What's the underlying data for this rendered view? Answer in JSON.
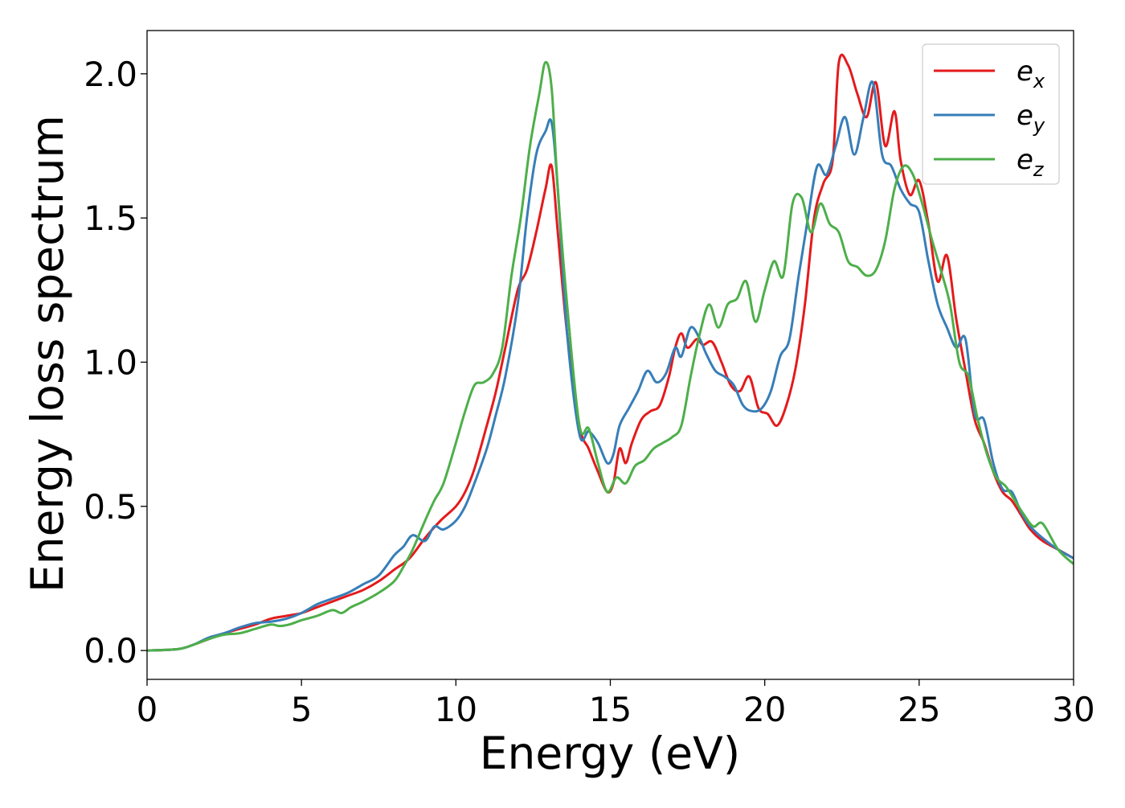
{
  "chart_data": {
    "type": "line",
    "title": "",
    "xlabel": "Energy (eV)",
    "ylabel": "Energy loss spectrum",
    "xlim": [
      0,
      30
    ],
    "ylim": [
      -0.1,
      2.15
    ],
    "xticks": [
      0,
      5,
      10,
      15,
      20,
      25,
      30
    ],
    "xtick_labels": [
      "0",
      "5",
      "10",
      "15",
      "20",
      "25",
      "30"
    ],
    "yticks": [
      0.0,
      0.5,
      1.0,
      1.5,
      2.0
    ],
    "ytick_labels": [
      "0.0",
      "0.5",
      "1.0",
      "1.5",
      "2.0"
    ],
    "grid": false,
    "legend": "top-right",
    "series": [
      {
        "name": "e_x",
        "label_base": "e",
        "label_sub": "x",
        "color": "#e41a1c",
        "x": [
          0,
          1,
          1.5,
          2,
          2.5,
          3,
          3.5,
          4,
          4.5,
          5,
          5.5,
          6,
          6.5,
          7,
          7.5,
          8,
          8.5,
          9,
          9.5,
          10,
          10.3,
          10.6,
          11,
          11.3,
          11.6,
          12,
          12.3,
          12.6,
          12.9,
          13.1,
          13.3,
          13.6,
          14,
          14.3,
          14.6,
          14.9,
          15.1,
          15.3,
          15.5,
          15.7,
          16,
          16.3,
          16.6,
          16.9,
          17.1,
          17.3,
          17.5,
          17.8,
          18,
          18.3,
          18.6,
          18.9,
          19.2,
          19.5,
          19.8,
          20.1,
          20.4,
          20.7,
          21,
          21.3,
          21.6,
          21.9,
          22.2,
          22.4,
          22.7,
          23,
          23.3,
          23.6,
          23.9,
          24.2,
          24.4,
          24.7,
          25,
          25.3,
          25.6,
          25.9,
          26.2,
          26.5,
          26.8,
          27.1,
          27.4,
          27.7,
          28,
          28.3,
          28.6,
          29,
          29.5,
          30
        ],
        "y": [
          0,
          0.005,
          0.02,
          0.04,
          0.06,
          0.075,
          0.09,
          0.11,
          0.12,
          0.13,
          0.15,
          0.17,
          0.19,
          0.21,
          0.24,
          0.28,
          0.32,
          0.39,
          0.45,
          0.5,
          0.55,
          0.63,
          0.78,
          0.9,
          1.05,
          1.25,
          1.32,
          1.45,
          1.6,
          1.68,
          1.45,
          1.1,
          0.78,
          0.7,
          0.62,
          0.55,
          0.58,
          0.7,
          0.65,
          0.72,
          0.8,
          0.83,
          0.85,
          0.95,
          1.05,
          1.1,
          1.05,
          1.08,
          1.06,
          1.07,
          1.0,
          0.92,
          0.9,
          0.95,
          0.84,
          0.82,
          0.78,
          0.85,
          0.98,
          1.2,
          1.5,
          1.62,
          1.7,
          2.04,
          2.03,
          1.93,
          1.85,
          1.97,
          1.75,
          1.87,
          1.7,
          1.58,
          1.63,
          1.48,
          1.28,
          1.37,
          1.15,
          0.97,
          0.8,
          0.72,
          0.62,
          0.55,
          0.52,
          0.47,
          0.42,
          0.38,
          0.35,
          0.32
        ]
      },
      {
        "name": "e_y",
        "label_base": "e",
        "label_sub": "y",
        "color": "#377eb8",
        "x": [
          0,
          1,
          1.5,
          2,
          2.5,
          3,
          3.5,
          4,
          4.5,
          5,
          5.5,
          6,
          6.5,
          7,
          7.5,
          8,
          8.3,
          8.6,
          9,
          9.3,
          9.6,
          10,
          10.3,
          10.6,
          11,
          11.3,
          11.6,
          12,
          12.3,
          12.6,
          12.9,
          13.1,
          13.3,
          13.6,
          14,
          14.3,
          14.6,
          14.9,
          15.1,
          15.3,
          15.6,
          15.9,
          16.2,
          16.5,
          16.8,
          17.1,
          17.3,
          17.6,
          17.9,
          18.1,
          18.4,
          18.7,
          19,
          19.3,
          19.6,
          19.9,
          20.2,
          20.5,
          20.8,
          21.1,
          21.4,
          21.7,
          22,
          22.3,
          22.6,
          22.9,
          23.2,
          23.5,
          23.8,
          24.1,
          24.4,
          24.7,
          25,
          25.3,
          25.6,
          25.9,
          26.2,
          26.5,
          26.8,
          27.1,
          27.4,
          27.7,
          28,
          28.3,
          28.6,
          29,
          29.5,
          30
        ],
        "y": [
          0,
          0.005,
          0.02,
          0.045,
          0.06,
          0.08,
          0.095,
          0.1,
          0.11,
          0.13,
          0.16,
          0.18,
          0.2,
          0.23,
          0.26,
          0.33,
          0.36,
          0.4,
          0.38,
          0.43,
          0.42,
          0.45,
          0.5,
          0.58,
          0.7,
          0.82,
          0.95,
          1.2,
          1.5,
          1.72,
          1.8,
          1.83,
          1.6,
          1.1,
          0.75,
          0.76,
          0.72,
          0.65,
          0.68,
          0.78,
          0.84,
          0.9,
          0.97,
          0.93,
          0.96,
          1.05,
          1.02,
          1.12,
          1.08,
          1.03,
          0.97,
          0.95,
          0.92,
          0.85,
          0.83,
          0.84,
          0.9,
          1.02,
          1.08,
          1.3,
          1.5,
          1.68,
          1.65,
          1.75,
          1.85,
          1.72,
          1.85,
          1.97,
          1.72,
          1.68,
          1.6,
          1.55,
          1.52,
          1.35,
          1.2,
          1.12,
          1.05,
          1.08,
          0.82,
          0.8,
          0.65,
          0.56,
          0.55,
          0.48,
          0.43,
          0.39,
          0.35,
          0.32
        ]
      },
      {
        "name": "e_z",
        "label_base": "e",
        "label_sub": "z",
        "color": "#4daf4a",
        "x": [
          0,
          1,
          1.5,
          2,
          2.5,
          3,
          3.5,
          4,
          4.3,
          4.6,
          5,
          5.5,
          6,
          6.3,
          6.6,
          7,
          7.5,
          8,
          8.3,
          8.6,
          9,
          9.3,
          9.6,
          10,
          10.3,
          10.6,
          10.9,
          11.2,
          11.5,
          11.8,
          12.1,
          12.4,
          12.7,
          12.9,
          13.1,
          13.3,
          13.6,
          14,
          14.3,
          14.6,
          14.9,
          15.2,
          15.5,
          15.8,
          16.1,
          16.4,
          16.7,
          17,
          17.3,
          17.6,
          17.9,
          18.2,
          18.5,
          18.8,
          19.1,
          19.4,
          19.7,
          20,
          20.3,
          20.6,
          20.9,
          21.2,
          21.5,
          21.8,
          22.1,
          22.4,
          22.7,
          23,
          23.3,
          23.6,
          23.9,
          24.2,
          24.5,
          24.8,
          25.1,
          25.4,
          25.7,
          26,
          26.3,
          26.6,
          26.9,
          27.2,
          27.5,
          27.8,
          28.1,
          28.4,
          28.7,
          29,
          29.5,
          30
        ],
        "y": [
          0,
          0.005,
          0.02,
          0.04,
          0.055,
          0.06,
          0.075,
          0.09,
          0.085,
          0.09,
          0.105,
          0.12,
          0.14,
          0.13,
          0.15,
          0.17,
          0.2,
          0.24,
          0.29,
          0.35,
          0.45,
          0.52,
          0.58,
          0.72,
          0.83,
          0.92,
          0.93,
          0.96,
          1.05,
          1.3,
          1.5,
          1.75,
          1.93,
          2.04,
          1.95,
          1.6,
          1.2,
          0.78,
          0.77,
          0.65,
          0.55,
          0.6,
          0.58,
          0.64,
          0.66,
          0.7,
          0.72,
          0.74,
          0.78,
          0.95,
          1.1,
          1.2,
          1.12,
          1.2,
          1.22,
          1.28,
          1.14,
          1.25,
          1.35,
          1.3,
          1.55,
          1.57,
          1.45,
          1.55,
          1.48,
          1.45,
          1.35,
          1.33,
          1.3,
          1.32,
          1.42,
          1.6,
          1.68,
          1.65,
          1.55,
          1.43,
          1.32,
          1.2,
          1.0,
          0.95,
          0.8,
          0.68,
          0.6,
          0.57,
          0.52,
          0.47,
          0.43,
          0.44,
          0.35,
          0.3
        ]
      }
    ]
  }
}
